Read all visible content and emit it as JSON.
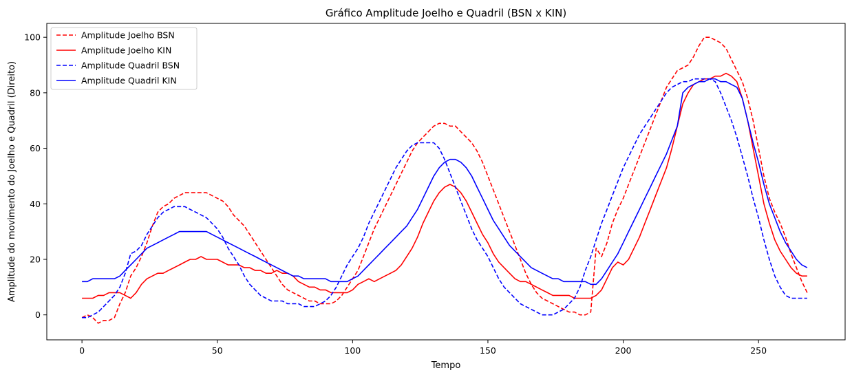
{
  "chart_data": {
    "type": "line",
    "title": "Gráfico Amplitude Joelho e Quadril (BSN x KIN)",
    "xlabel": "Tempo",
    "ylabel": "Amplitude do movimento do Joelho e Quadril (Direito)",
    "xlim": [
      -13,
      282
    ],
    "ylim": [
      -9,
      105
    ],
    "xticks": [
      0,
      50,
      100,
      150,
      200,
      250
    ],
    "yticks": [
      0,
      20,
      40,
      60,
      80,
      100
    ],
    "grid": false,
    "legend_position": "top-left",
    "series": [
      {
        "name": "Amplitude Joelho BSN",
        "color": "#ff0000",
        "dash": "dashed",
        "x": [
          0,
          2,
          4,
          6,
          8,
          10,
          12,
          14,
          16,
          18,
          20,
          22,
          24,
          26,
          28,
          30,
          32,
          34,
          36,
          38,
          40,
          42,
          44,
          46,
          48,
          50,
          52,
          54,
          56,
          58,
          60,
          62,
          64,
          66,
          68,
          70,
          72,
          74,
          76,
          78,
          80,
          82,
          84,
          86,
          88,
          90,
          92,
          94,
          96,
          98,
          100,
          102,
          104,
          106,
          108,
          110,
          112,
          114,
          116,
          118,
          120,
          122,
          124,
          126,
          128,
          130,
          132,
          134,
          136,
          138,
          140,
          142,
          144,
          146,
          148,
          150,
          152,
          154,
          156,
          158,
          160,
          162,
          164,
          166,
          168,
          170,
          172,
          174,
          176,
          178,
          180,
          182,
          184,
          186,
          188,
          190,
          192,
          194,
          196,
          198,
          200,
          202,
          204,
          206,
          208,
          210,
          212,
          214,
          216,
          218,
          220,
          222,
          224,
          226,
          228,
          230,
          232,
          234,
          236,
          238,
          240,
          242,
          244,
          246,
          248,
          250,
          252,
          254,
          256,
          258,
          260,
          262,
          264,
          266,
          268
        ],
        "values": [
          -1,
          0,
          -1,
          -3,
          -2,
          -2,
          -1,
          4,
          8,
          14,
          17,
          21,
          26,
          32,
          37,
          39,
          40,
          42,
          43,
          44,
          44,
          44,
          44,
          44,
          43,
          42,
          41,
          39,
          36,
          34,
          32,
          29,
          26,
          23,
          20,
          17,
          14,
          11,
          9,
          8,
          7,
          6,
          5,
          5,
          4,
          4,
          4,
          5,
          7,
          10,
          13,
          16,
          21,
          26,
          31,
          35,
          39,
          43,
          47,
          51,
          55,
          59,
          62,
          64,
          66,
          68,
          69,
          69,
          68,
          68,
          66,
          64,
          62,
          59,
          55,
          50,
          45,
          40,
          35,
          30,
          25,
          20,
          15,
          11,
          8,
          6,
          5,
          4,
          3,
          2,
          1,
          1,
          0,
          0,
          1,
          24,
          21,
          26,
          33,
          38,
          42,
          47,
          52,
          57,
          62,
          67,
          72,
          77,
          82,
          85,
          88,
          89,
          90,
          93,
          97,
          100,
          100,
          99,
          98,
          96,
          92,
          88,
          84,
          78,
          70,
          60,
          50,
          42,
          37,
          33,
          28,
          22,
          17,
          12,
          8
        ]
      },
      {
        "name": "Amplitude Joelho KIN",
        "color": "#ff0000",
        "dash": "solid",
        "x": [
          0,
          2,
          4,
          6,
          8,
          10,
          12,
          14,
          16,
          18,
          20,
          22,
          24,
          26,
          28,
          30,
          32,
          34,
          36,
          38,
          40,
          42,
          44,
          46,
          48,
          50,
          52,
          54,
          56,
          58,
          60,
          62,
          64,
          66,
          68,
          70,
          72,
          74,
          76,
          78,
          80,
          82,
          84,
          86,
          88,
          90,
          92,
          94,
          96,
          98,
          100,
          102,
          104,
          106,
          108,
          110,
          112,
          114,
          116,
          118,
          120,
          122,
          124,
          126,
          128,
          130,
          132,
          134,
          136,
          138,
          140,
          142,
          144,
          146,
          148,
          150,
          152,
          154,
          156,
          158,
          160,
          162,
          164,
          166,
          168,
          170,
          172,
          174,
          176,
          178,
          180,
          182,
          184,
          186,
          188,
          190,
          192,
          194,
          196,
          198,
          200,
          202,
          204,
          206,
          208,
          210,
          212,
          214,
          216,
          218,
          220,
          222,
          224,
          226,
          228,
          230,
          232,
          234,
          236,
          238,
          240,
          242,
          244,
          246,
          248,
          250,
          252,
          254,
          256,
          258,
          260,
          262,
          264,
          266,
          268
        ],
        "values": [
          6,
          6,
          6,
          7,
          7,
          8,
          8,
          8,
          7,
          6,
          8,
          11,
          13,
          14,
          15,
          15,
          16,
          17,
          18,
          19,
          20,
          20,
          21,
          20,
          20,
          20,
          19,
          18,
          18,
          18,
          17,
          17,
          16,
          16,
          15,
          15,
          16,
          15,
          15,
          14,
          12,
          11,
          10,
          10,
          9,
          9,
          8,
          8,
          8,
          8,
          9,
          11,
          12,
          13,
          12,
          13,
          14,
          15,
          16,
          18,
          21,
          24,
          28,
          33,
          37,
          41,
          44,
          46,
          47,
          46,
          44,
          41,
          37,
          33,
          29,
          26,
          22,
          19,
          17,
          15,
          13,
          12,
          12,
          11,
          10,
          9,
          8,
          7,
          7,
          7,
          7,
          6,
          6,
          6,
          6,
          7,
          9,
          13,
          17,
          19,
          18,
          20,
          24,
          28,
          33,
          38,
          43,
          48,
          53,
          60,
          68,
          76,
          80,
          83,
          84,
          85,
          85,
          86,
          86,
          87,
          86,
          84,
          78,
          70,
          60,
          50,
          40,
          33,
          27,
          23,
          20,
          17,
          15,
          14,
          14
        ]
      },
      {
        "name": "Amplitude Quadril BSN",
        "color": "#0000ff",
        "dash": "dashed",
        "x": [
          0,
          2,
          4,
          6,
          8,
          10,
          12,
          14,
          16,
          18,
          20,
          22,
          24,
          26,
          28,
          30,
          32,
          34,
          36,
          38,
          40,
          42,
          44,
          46,
          48,
          50,
          52,
          54,
          56,
          58,
          60,
          62,
          64,
          66,
          68,
          70,
          72,
          74,
          76,
          78,
          80,
          82,
          84,
          86,
          88,
          90,
          92,
          94,
          96,
          98,
          100,
          102,
          104,
          106,
          108,
          110,
          112,
          114,
          116,
          118,
          120,
          122,
          124,
          126,
          128,
          130,
          132,
          134,
          136,
          138,
          140,
          142,
          144,
          146,
          148,
          150,
          152,
          154,
          156,
          158,
          160,
          162,
          164,
          166,
          168,
          170,
          172,
          174,
          176,
          178,
          180,
          182,
          184,
          186,
          188,
          190,
          192,
          194,
          196,
          198,
          200,
          202,
          204,
          206,
          208,
          210,
          212,
          214,
          216,
          218,
          220,
          222,
          224,
          226,
          228,
          230,
          232,
          234,
          236,
          238,
          240,
          242,
          244,
          246,
          248,
          250,
          252,
          254,
          256,
          258,
          260,
          262,
          264,
          266,
          268
        ],
        "values": [
          -1,
          -1,
          0,
          1,
          3,
          5,
          7,
          10,
          15,
          22,
          23,
          25,
          29,
          32,
          35,
          37,
          38,
          39,
          39,
          39,
          38,
          37,
          36,
          35,
          33,
          31,
          28,
          24,
          21,
          18,
          14,
          11,
          9,
          7,
          6,
          5,
          5,
          5,
          4,
          4,
          4,
          3,
          3,
          3,
          4,
          5,
          7,
          10,
          14,
          18,
          21,
          24,
          28,
          33,
          37,
          41,
          45,
          49,
          53,
          56,
          59,
          61,
          62,
          62,
          62,
          62,
          60,
          56,
          51,
          46,
          41,
          36,
          31,
          27,
          24,
          21,
          17,
          13,
          10,
          8,
          6,
          4,
          3,
          2,
          1,
          0,
          0,
          0,
          1,
          2,
          4,
          6,
          10,
          16,
          21,
          27,
          33,
          38,
          43,
          48,
          53,
          57,
          61,
          65,
          68,
          71,
          74,
          77,
          80,
          82,
          83,
          84,
          84,
          85,
          85,
          85,
          85,
          84,
          80,
          75,
          70,
          64,
          57,
          50,
          42,
          35,
          27,
          20,
          14,
          10,
          7,
          6,
          6,
          6,
          6
        ]
      },
      {
        "name": "Amplitude Quadril KIN",
        "color": "#0000ff",
        "dash": "solid",
        "x": [
          0,
          2,
          4,
          6,
          8,
          10,
          12,
          14,
          16,
          18,
          20,
          22,
          24,
          26,
          28,
          30,
          32,
          34,
          36,
          38,
          40,
          42,
          44,
          46,
          48,
          50,
          52,
          54,
          56,
          58,
          60,
          62,
          64,
          66,
          68,
          70,
          72,
          74,
          76,
          78,
          80,
          82,
          84,
          86,
          88,
          90,
          92,
          94,
          96,
          98,
          100,
          102,
          104,
          106,
          108,
          110,
          112,
          114,
          116,
          118,
          120,
          122,
          124,
          126,
          128,
          130,
          132,
          134,
          136,
          138,
          140,
          142,
          144,
          146,
          148,
          150,
          152,
          154,
          156,
          158,
          160,
          162,
          164,
          166,
          168,
          170,
          172,
          174,
          176,
          178,
          180,
          182,
          184,
          186,
          188,
          190,
          192,
          194,
          196,
          198,
          200,
          202,
          204,
          206,
          208,
          210,
          212,
          214,
          216,
          218,
          220,
          222,
          224,
          226,
          228,
          230,
          232,
          234,
          236,
          238,
          240,
          242,
          244,
          246,
          248,
          250,
          252,
          254,
          256,
          258,
          260,
          262,
          264,
          266,
          268
        ],
        "values": [
          12,
          12,
          13,
          13,
          13,
          13,
          13,
          14,
          16,
          18,
          20,
          22,
          24,
          25,
          26,
          27,
          28,
          29,
          30,
          30,
          30,
          30,
          30,
          30,
          29,
          28,
          27,
          26,
          25,
          24,
          23,
          22,
          21,
          20,
          19,
          18,
          17,
          16,
          15,
          14,
          14,
          13,
          13,
          13,
          13,
          13,
          12,
          12,
          12,
          12,
          13,
          14,
          16,
          18,
          20,
          22,
          24,
          26,
          28,
          30,
          32,
          35,
          38,
          42,
          46,
          50,
          53,
          55,
          56,
          56,
          55,
          53,
          50,
          46,
          42,
          38,
          34,
          31,
          28,
          25,
          23,
          21,
          19,
          17,
          16,
          15,
          14,
          13,
          13,
          12,
          12,
          12,
          12,
          12,
          11,
          11,
          13,
          16,
          19,
          22,
          26,
          30,
          34,
          38,
          42,
          46,
          50,
          54,
          58,
          63,
          68,
          80,
          82,
          83,
          84,
          84,
          85,
          85,
          84,
          84,
          83,
          82,
          78,
          70,
          62,
          55,
          47,
          40,
          35,
          30,
          26,
          23,
          20,
          18,
          17
        ]
      }
    ]
  }
}
